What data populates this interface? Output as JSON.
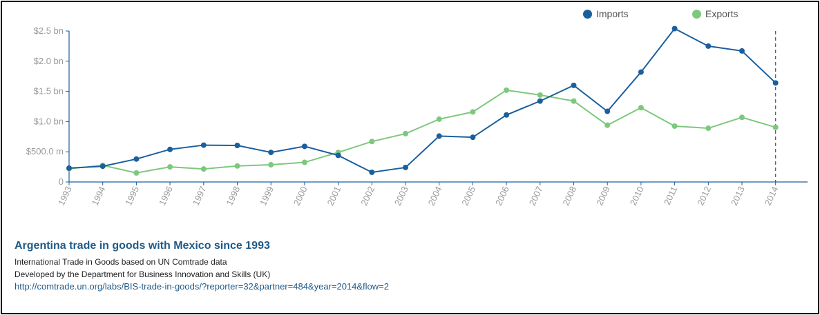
{
  "chart_data": {
    "type": "line",
    "x": [
      "1993",
      "1994",
      "1995",
      "1996",
      "1997",
      "1998",
      "1999",
      "2000",
      "2001",
      "2002",
      "2003",
      "2004",
      "2005",
      "2006",
      "2007",
      "2008",
      "2009",
      "2010",
      "2011",
      "2012",
      "2013",
      "2014"
    ],
    "y_ticks": [
      {
        "value": 0,
        "label": "0"
      },
      {
        "value": 500,
        "label": "$500.0 m"
      },
      {
        "value": 1000,
        "label": "$1.0 bn"
      },
      {
        "value": 1500,
        "label": "$1.5 bn"
      },
      {
        "value": 2000,
        "label": "$2.0 bn"
      },
      {
        "value": 2500,
        "label": "$2.5 bn"
      }
    ],
    "ylim": [
      0,
      2500
    ],
    "y_unit": "millions USD",
    "series": [
      {
        "name": "Imports",
        "color": "#1a5f9e",
        "values": [
          230,
          260,
          380,
          540,
          610,
          605,
          490,
          590,
          440,
          160,
          240,
          760,
          740,
          1110,
          1340,
          1600,
          1170,
          1820,
          2540,
          2250,
          2170,
          1640
        ]
      },
      {
        "name": "Exports",
        "color": "#7dc87d",
        "values": [
          220,
          275,
          150,
          250,
          215,
          265,
          285,
          325,
          490,
          670,
          800,
          1040,
          1160,
          1520,
          1440,
          1340,
          940,
          1230,
          925,
          890,
          1070,
          905
        ]
      }
    ],
    "highlight_x": "2014",
    "legend_position": "top-right",
    "grid": false
  },
  "legend": {
    "imports_label": "Imports",
    "exports_label": "Exports"
  },
  "info": {
    "title": "Argentina trade in goods with Mexico since 1993",
    "line1": "International Trade in Goods based on UN Comtrade data",
    "line2": "Developed by the Department for Business Innovation and Skills (UK)",
    "link": "http://comtrade.un.org/labs/BIS-trade-in-goods/?reporter=32&partner=484&year=2014&flow=2"
  }
}
